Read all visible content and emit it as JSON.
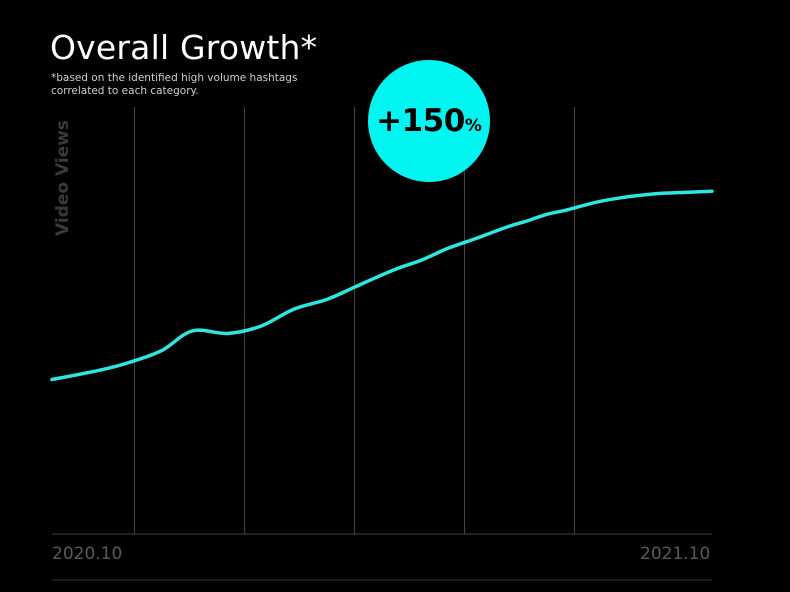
{
  "chart_data": {
    "type": "line",
    "title": "Overall Growth*",
    "subtitle_lines": [
      "*based on the identified high volume hashtags",
      "correlated to each category."
    ],
    "ylabel": "Video Views",
    "xlabel": "",
    "x_tick_labels": [
      "2020.10",
      "2021.10"
    ],
    "x_range": [
      0,
      12
    ],
    "y_range": [
      0,
      100
    ],
    "grid": "vertical",
    "annotation": {
      "value": "+150",
      "unit": "%"
    },
    "series": [
      {
        "name": "Video Views",
        "color": "#2ee6e0",
        "x": [
          0,
          0.9,
          1.4,
          2.0,
          2.55,
          3.2,
          3.8,
          4.4,
          5.0,
          5.5,
          6.2,
          6.7,
          7.2,
          7.7,
          8.3,
          8.6,
          9.0,
          9.4,
          9.9,
          10.4,
          11.0,
          11.5,
          12.0
        ],
        "y": [
          22,
          26,
          29,
          34,
          42,
          41,
          44,
          51,
          55,
          60,
          67,
          71,
          76,
          80,
          85,
          87,
          90,
          92,
          95,
          97,
          98.5,
          99,
          99.5
        ]
      }
    ]
  },
  "colors": {
    "background": "#000000",
    "line": "#2ee6e0",
    "badge": "#00f5f0",
    "grid": "#444444"
  }
}
